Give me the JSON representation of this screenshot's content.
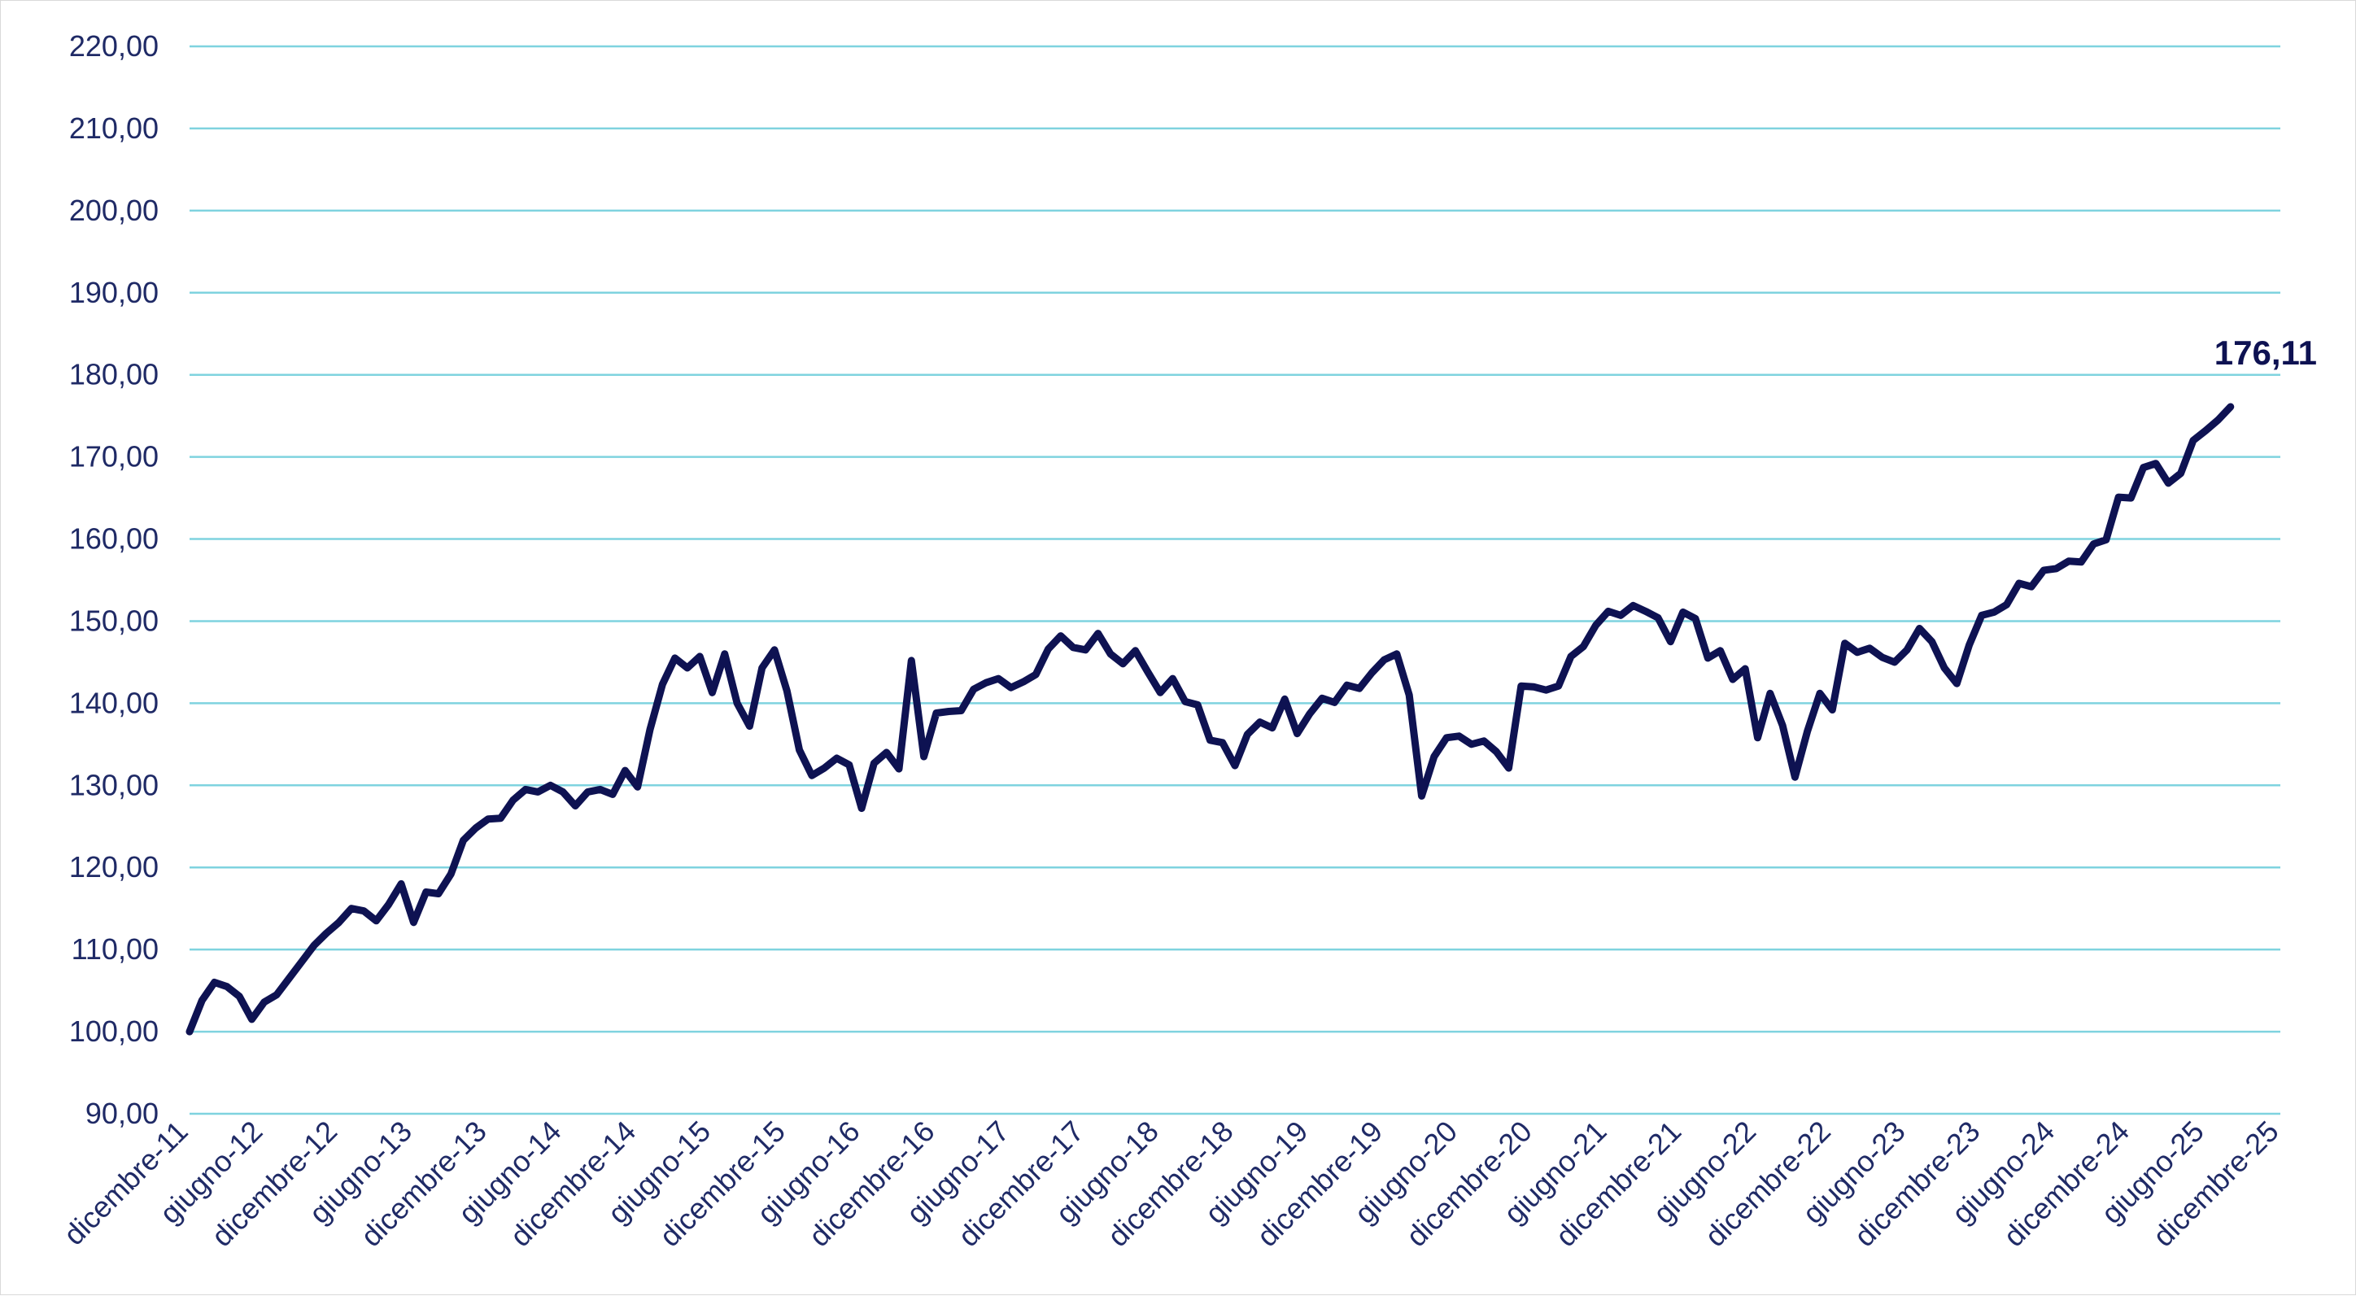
{
  "chart_data": {
    "type": "line",
    "title": "",
    "xlabel": "",
    "ylabel": "",
    "ylim": [
      90,
      220
    ],
    "yticks": [
      "90,00",
      "100,00",
      "110,00",
      "120,00",
      "130,00",
      "140,00",
      "150,00",
      "160,00",
      "170,00",
      "180,00",
      "190,00",
      "200,00",
      "210,00",
      "220,00"
    ],
    "xticks": [
      "dicembre-11",
      "giugno-12",
      "dicembre-12",
      "giugno-13",
      "dicembre-13",
      "giugno-14",
      "dicembre-14",
      "giugno-15",
      "dicembre-15",
      "giugno-16",
      "dicembre-16",
      "giugno-17",
      "dicembre-17",
      "giugno-18",
      "dicembre-18",
      "giugno-19",
      "dicembre-19",
      "giugno-20",
      "dicembre-20",
      "giugno-21",
      "dicembre-21",
      "giugno-22",
      "dicembre-22",
      "giugno-23",
      "dicembre-23",
      "giugno-24",
      "dicembre-24",
      "giugno-25",
      "dicembre-25"
    ],
    "grid": true,
    "legend": "none",
    "line_color": "#0e1252",
    "grid_color": "#7fd3df",
    "series": [
      {
        "values": [
          100.0,
          103.8,
          106.0,
          105.5,
          104.3,
          101.5,
          103.6,
          104.5,
          106.5,
          108.5,
          110.5,
          112.0,
          113.3,
          115.0,
          114.7,
          113.5,
          115.5,
          118.0,
          113.3,
          117.0,
          116.8,
          119.2,
          123.3,
          124.8,
          125.9,
          126.0,
          128.2,
          129.5,
          129.2,
          130.0,
          129.2,
          127.5,
          129.2,
          129.5,
          128.9,
          131.8,
          129.8,
          136.8,
          142.3,
          145.5,
          144.3,
          145.7,
          141.3,
          146.0,
          140.0,
          137.2,
          144.3,
          146.5,
          141.5,
          134.3,
          131.2,
          132.1,
          133.3,
          132.5,
          127.2,
          132.7,
          134.0,
          132.0,
          145.2,
          133.5,
          138.8,
          139.0,
          139.1,
          141.7,
          142.5,
          143.0,
          141.9,
          142.6,
          143.5,
          146.6,
          148.2,
          146.8,
          146.5,
          148.5,
          146.0,
          144.8,
          146.4,
          143.8,
          141.3,
          143.0,
          140.2,
          139.8,
          135.5,
          135.2,
          132.4,
          136.2,
          137.7,
          137.0,
          140.5,
          136.3,
          138.7,
          140.6,
          140.1,
          142.2,
          141.8,
          143.7,
          145.3,
          146.0,
          141.0,
          128.7,
          133.5,
          135.8,
          136.0,
          135.0,
          135.4,
          134.1,
          132.1,
          142.1,
          142.0,
          141.6,
          142.1,
          145.7,
          146.9,
          149.5,
          151.2,
          150.7,
          151.9,
          151.2,
          150.4,
          147.5,
          151.1,
          150.3,
          145.5,
          146.4,
          142.9,
          144.2,
          135.8,
          141.2,
          137.3,
          131.0,
          136.6,
          141.2,
          139.2,
          147.3,
          146.2,
          146.7,
          145.6,
          145.0,
          146.5,
          149.1,
          147.5,
          144.3,
          142.4,
          147.1,
          150.7,
          151.1,
          152.0,
          154.6,
          154.2,
          156.2,
          156.4,
          157.3,
          157.2,
          159.4,
          159.9,
          165.1,
          165.0,
          168.7,
          169.2,
          166.8,
          168.0,
          172.0,
          173.2,
          174.5,
          176.11
        ]
      }
    ],
    "annotations": [
      {
        "text": "176,11",
        "point": "last"
      }
    ]
  }
}
